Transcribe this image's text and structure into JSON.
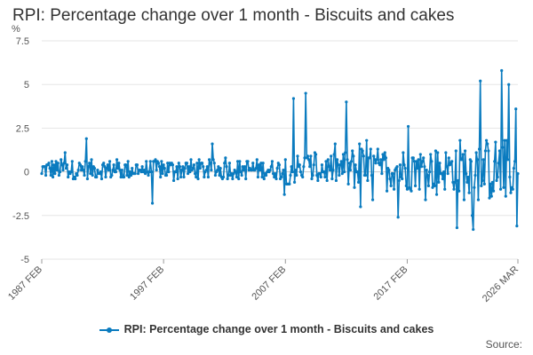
{
  "chart_data": {
    "type": "line",
    "title": "RPI: Percentage change over 1 month - Biscuits and cakes",
    "ylabel": "%",
    "xlabel": "",
    "ylim": [
      -5,
      7.5
    ],
    "yticks": [
      7.5,
      5,
      2.5,
      0,
      -2.5,
      -5
    ],
    "ytick_labels": [
      "7.5",
      "5",
      "2.5",
      "0",
      "-2.5",
      "-5"
    ],
    "xticks": [
      "1987 FEB",
      "1997 FEB",
      "2007 FEB",
      "2017 FEB",
      "2026 MAR"
    ],
    "x_range": [
      "1987 FEB",
      "2026 MAR"
    ],
    "grid": true,
    "legend_position": "bottom",
    "color": "#0a7bbf",
    "series": [
      {
        "name": "RPI: Percentage change over 1 month - Biscuits and cakes",
        "sample_points": [
          {
            "x": "1987 FEB",
            "y": -0.1
          },
          {
            "x": "1989 JAN",
            "y": 1.1
          },
          {
            "x": "1990 OCT",
            "y": 1.9
          },
          {
            "x": "1996 MAR",
            "y": -1.8
          },
          {
            "x": "2001 FEB",
            "y": 1.6
          },
          {
            "x": "2007 JAN",
            "y": -1.3
          },
          {
            "x": "2007 OCT",
            "y": 4.2
          },
          {
            "x": "2008 OCT",
            "y": 4.5
          },
          {
            "x": "2012 FEB",
            "y": 4.0
          },
          {
            "x": "2013 APR",
            "y": -2.0
          },
          {
            "x": "2016 MAY",
            "y": -2.6
          },
          {
            "x": "2017 MAR",
            "y": 2.6
          },
          {
            "x": "2021 MAR",
            "y": -3.2
          },
          {
            "x": "2022 JUL",
            "y": -3.3
          },
          {
            "x": "2023 FEB",
            "y": 5.2
          },
          {
            "x": "2024 NOV",
            "y": 5.8
          },
          {
            "x": "2025 JUN",
            "y": 5.0
          },
          {
            "x": "2026 JAN",
            "y": 3.6
          },
          {
            "x": "2026 FEB",
            "y": -3.1
          },
          {
            "x": "2026 MAR",
            "y": -0.1
          }
        ]
      }
    ]
  },
  "legend": {
    "label": "RPI: Percentage change over 1 month - Biscuits and cakes"
  },
  "footer": {
    "source_label": "Source:"
  }
}
